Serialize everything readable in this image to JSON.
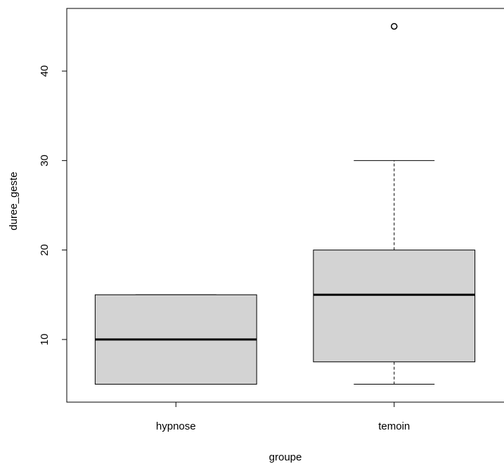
{
  "chart_data": {
    "type": "boxplot",
    "xlabel": "groupe",
    "ylabel": "duree_geste",
    "categories": [
      "hypnose",
      "temoin"
    ],
    "ylim": [
      3.0,
      47.0
    ],
    "yticks": [
      10,
      20,
      30,
      40
    ],
    "grid": false,
    "boxes": [
      {
        "category": "hypnose",
        "whisker_low": 5,
        "q1": 5,
        "median": 10,
        "q3": 15,
        "whisker_high": 15,
        "outliers": []
      },
      {
        "category": "temoin",
        "whisker_low": 5,
        "q1": 7.5,
        "median": 15,
        "q3": 20,
        "whisker_high": 30,
        "outliers": [
          45
        ]
      }
    ],
    "box_fill": "#d3d3d3",
    "line_color": "#000000"
  }
}
